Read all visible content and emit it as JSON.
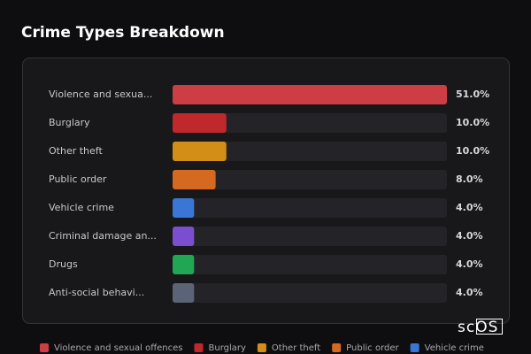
{
  "chart_data": {
    "type": "bar",
    "orientation": "horizontal",
    "title": "Crime Types Breakdown",
    "categories": [
      "Violence and sexua...",
      "Burglary",
      "Other theft",
      "Public order",
      "Vehicle crime",
      "Criminal damage an...",
      "Drugs",
      "Anti-social behavi..."
    ],
    "values": [
      51,
      10,
      10,
      8,
      4,
      4,
      4,
      4
    ],
    "value_labels": [
      "51.0%",
      "10.0%",
      "10.0%",
      "8.0%",
      "4.0%",
      "4.0%",
      "4.0%",
      "4.0%"
    ],
    "colors": [
      "#cc3e44",
      "#c0282b",
      "#d38e17",
      "#d5691f",
      "#3a76d6",
      "#7a4fcf",
      "#21a653",
      "#5b6477"
    ],
    "xlim": [
      0,
      51
    ],
    "legend": [
      {
        "name": "Violence and sexual offences",
        "color": "#cc3e44"
      },
      {
        "name": "Burglary",
        "color": "#c0282b"
      },
      {
        "name": "Other theft",
        "color": "#d38e17"
      },
      {
        "name": "Public order",
        "color": "#d5691f"
      },
      {
        "name": "Vehicle crime",
        "color": "#3a76d6"
      }
    ],
    "watermark": "scOS"
  }
}
